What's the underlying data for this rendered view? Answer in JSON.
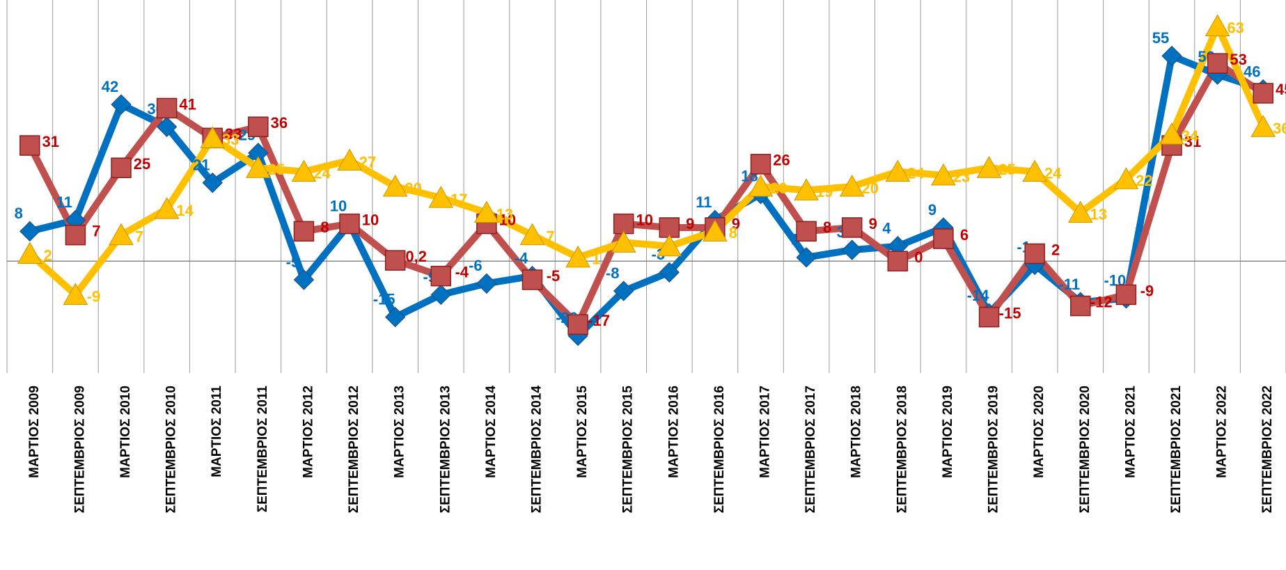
{
  "chart_data": {
    "type": "line",
    "categories": [
      "ΜΑΡΤΙΟΣ 2009",
      "ΣΕΠΤΕΜΒΡΙΟΣ 2009",
      "ΜΑΡΤΙΟΣ 2010",
      "ΣΕΠΤΕΜΒΡΙΟΣ 2010",
      "ΜΑΡΤΙΟΣ 2011",
      "ΣΕΠΤΕΜΒΡΙΟΣ 2011",
      "ΜΑΡΤΙΟΣ 2012",
      "ΣΕΠΤΕΜΒΡΙΟΣ 2012",
      "ΜΑΡΤΙΟΣ 2013",
      "ΣΕΠΤΕΜΒΡΙΟΣ 2013",
      "ΜΑΡΤΙΟΣ 2014",
      "ΣΕΠΤΕΜΒΡΙΟΣ 2014",
      "ΜΑΡΤΙΟΣ 2015",
      "ΣΕΠΤΕΜΒΡΙΟΣ 2015",
      "ΜΑΡΤΙΟΣ 2016",
      "ΣΕΠΤΕΜΒΡΙΟΣ 2016",
      "ΜΑΡΤΙΟΣ 2017",
      "ΣΕΠΤΕΜΒΡΙΟΣ 2017",
      "ΜΑΡΤΙΟΣ 2018",
      "ΣΕΠΤΕΜΒΡΙΟΣ 2018",
      "ΜΑΡΤΙΟΣ 2019",
      "ΣΕΠΤΕΜΒΡΙΟΣ 2019",
      "ΜΑΡΤΙΟΣ 2020",
      "ΣΕΠΤΕΜΒΡΙΟΣ 2020",
      "ΜΑΡΤΙΟΣ 2021",
      "ΣΕΠΤΕΜΒΡΙΟΣ 2021",
      "ΜΑΡΤΙΟΣ 2022",
      "ΣΕΠΤΕΜΒΡΙΟΣ 2022"
    ],
    "series": [
      {
        "color": "#0070c0",
        "label_color": "#0070c0",
        "marker": "diamond",
        "values": [
          8,
          11,
          42,
          36,
          21,
          29,
          -5,
          10,
          -15,
          -9,
          -6,
          -4,
          -20,
          -8,
          -3,
          11,
          18,
          1,
          3,
          4,
          9,
          -14,
          -1,
          -11,
          -10,
          55,
          50,
          46
        ],
        "value_labels": [
          "8",
          "11",
          "42",
          "36",
          "21",
          "29",
          "-5",
          "10",
          "-15",
          "-9",
          "-6",
          "-4",
          "-20",
          "-8",
          "-3",
          "11",
          "18",
          "1",
          "3",
          "4",
          "9",
          "-14",
          "-1",
          "-11",
          "-10",
          "55",
          "50",
          "46"
        ]
      },
      {
        "color": "#c0504d",
        "label_color": "#c00000",
        "marker": "square",
        "values": [
          31,
          7,
          25,
          41,
          33,
          36,
          8,
          10,
          0.2,
          -4,
          10,
          -5,
          -17,
          10,
          9,
          9,
          26,
          8,
          9,
          0,
          6,
          -15,
          2,
          -12,
          -9,
          31,
          53,
          45
        ],
        "value_labels": [
          "31",
          "7",
          "25",
          "41",
          "33",
          "36",
          "8",
          "10",
          "0,2",
          "-4",
          "10",
          "-5",
          "-17",
          "10",
          "9",
          "9",
          "26",
          "8",
          "9",
          "0",
          "6",
          "-15",
          "2",
          "-12",
          "-9",
          "31",
          "53",
          "45"
        ]
      },
      {
        "color": "#ffc000",
        "label_color": "#ffc000",
        "marker": "triangle",
        "values": [
          2,
          -9,
          7,
          14,
          33,
          25,
          24,
          27,
          20,
          17,
          13,
          7,
          1,
          5,
          4,
          8,
          20,
          19,
          20,
          24,
          23,
          25,
          24,
          13,
          22,
          34,
          63,
          36
        ],
        "value_labels": [
          "2",
          "-9",
          "7",
          "14",
          "33",
          "25",
          "24",
          "27",
          "20",
          "17",
          "13",
          "7",
          "1",
          null,
          null,
          "8",
          "20",
          "19",
          "20",
          "24",
          "23",
          "25",
          "24",
          "13",
          "22",
          "34",
          "63",
          "36"
        ]
      }
    ],
    "ylim": [
      -30,
      70
    ]
  }
}
